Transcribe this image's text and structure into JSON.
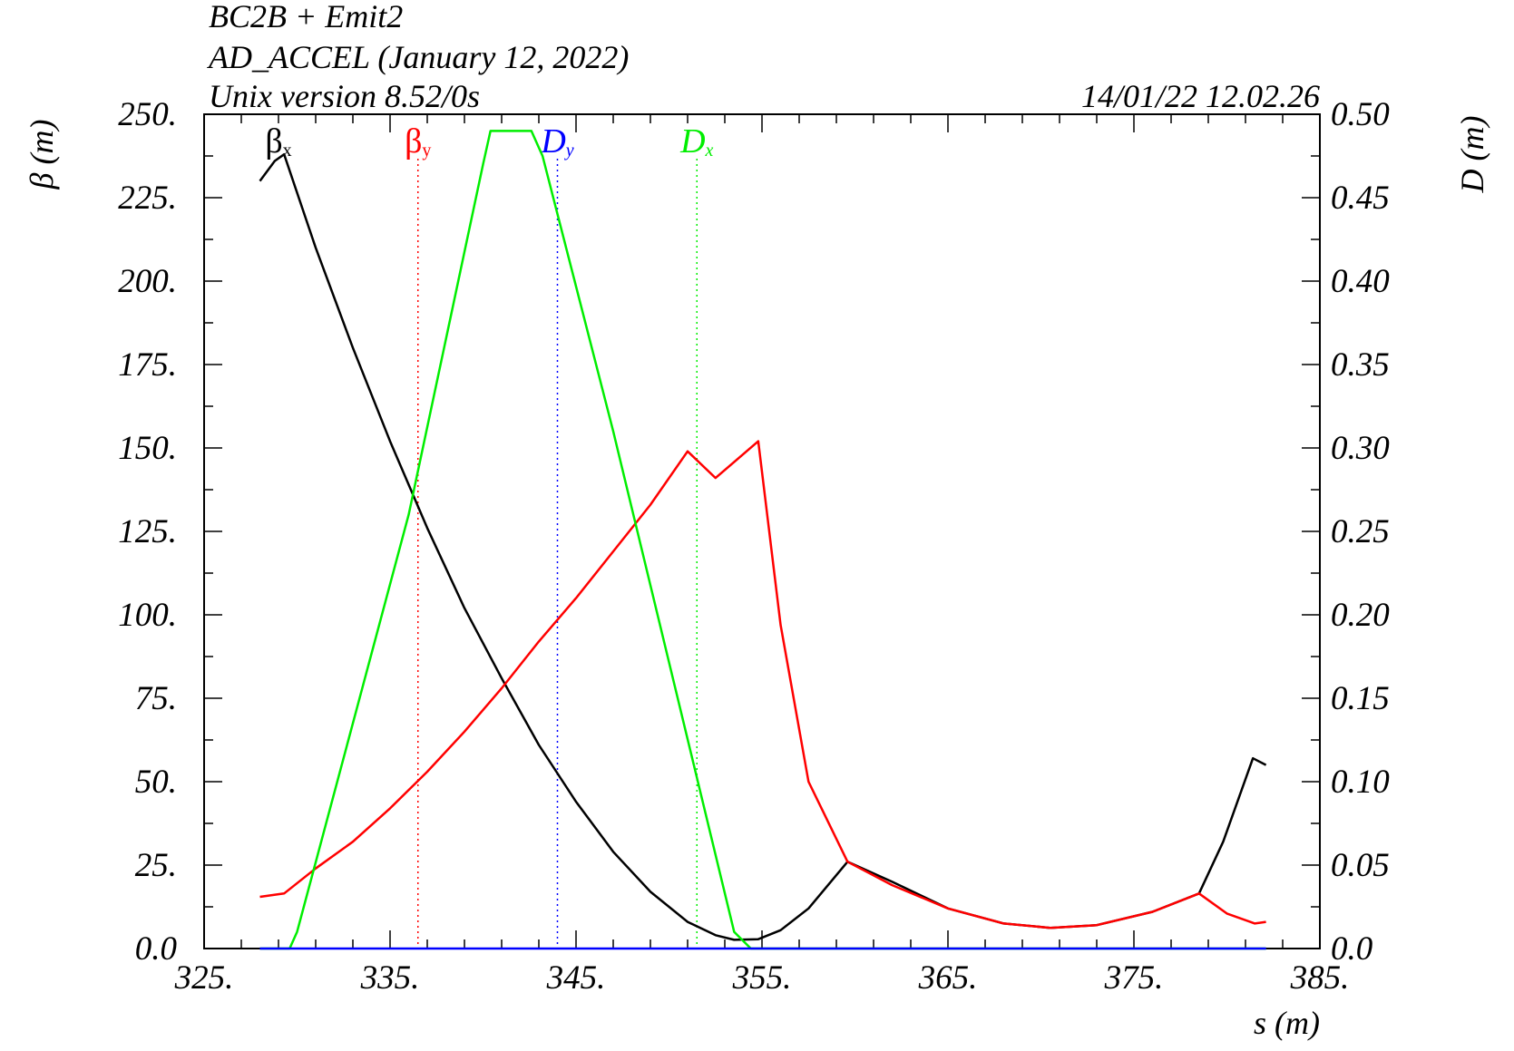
{
  "header": {
    "title_line1": "BC2B + Emit2",
    "title_line2": "AD_ACCEL (January 12, 2022)",
    "title_line3": "Unix version 8.52/0s",
    "timestamp": "14/01/22  12.02.26"
  },
  "chart_data": {
    "type": "line",
    "xlabel": "s (m)",
    "ylabel_left": "β  (m)",
    "ylabel_right": "D  (m)",
    "xlim": [
      325,
      385
    ],
    "ylim_left": [
      0,
      250
    ],
    "ylim_right": [
      0,
      0.5
    ],
    "x_ticks": [
      "325.",
      "335.",
      "345.",
      "355.",
      "365.",
      "375.",
      "385."
    ],
    "y_left_ticks": [
      "0.0",
      "25.",
      "50.",
      "75.",
      "100.",
      "125.",
      "150.",
      "175.",
      "200.",
      "225.",
      "250."
    ],
    "y_right_ticks": [
      "0.0",
      "0.05",
      "0.10",
      "0.15",
      "0.20",
      "0.25",
      "0.30",
      "0.35",
      "0.40",
      "0.45",
      "0.50"
    ],
    "legend_markers": [
      {
        "sym": "β",
        "sub": "x",
        "color": "#000000",
        "x": 329.0
      },
      {
        "sym": "β",
        "sub": "y",
        "color": "#ff0000",
        "x": 336.5
      },
      {
        "sym": "D",
        "sub": "y",
        "color": "#0000ff",
        "x": 344.0
      },
      {
        "sym": "D",
        "sub": "x",
        "color": "#00ee00",
        "x": 351.5
      }
    ],
    "series": [
      {
        "name": "βx",
        "color": "#000000",
        "axis": "left",
        "x": [
          328.0,
          328.8,
          329.3,
          331,
          333,
          335,
          337,
          339,
          341,
          343,
          345,
          347,
          349,
          351,
          352.5,
          353.5,
          354.8,
          356,
          357.5,
          359.6,
          362,
          365,
          368,
          370.5,
          373,
          376,
          378.5,
          379.8,
          381.4,
          382.1
        ],
        "y": [
          230,
          236,
          238,
          210,
          180,
          152,
          126,
          102,
          81,
          61,
          44,
          29,
          17,
          8,
          4,
          2.6,
          2.8,
          5.5,
          12,
          26,
          20,
          12,
          7.5,
          6.2,
          7,
          11,
          16.5,
          32,
          57,
          55
        ]
      },
      {
        "name": "βy",
        "color": "#ff0000",
        "axis": "left",
        "x": [
          328.0,
          329.3,
          331,
          333,
          335,
          337,
          339,
          341,
          343,
          345,
          347,
          349,
          351,
          352.5,
          354.8,
          356,
          357.5,
          359.6,
          362,
          365,
          368,
          370.5,
          373,
          376,
          378.5,
          380,
          381.5,
          382.1
        ],
        "y": [
          15.5,
          16.5,
          24,
          32,
          42,
          53,
          65,
          78,
          92,
          105,
          119,
          133,
          149,
          141,
          152,
          97,
          50,
          26,
          19,
          12,
          7.5,
          6.2,
          7,
          11,
          16.5,
          10.5,
          7.5,
          8
        ]
      },
      {
        "name": "Dx",
        "color": "#00ee00",
        "axis": "right",
        "x": [
          328.0,
          329.6,
          330.0,
          336.0,
          340.0,
          340.4,
          342.6,
          343.2,
          347.0,
          353.5,
          354.4,
          382.1
        ],
        "y": [
          0,
          0,
          0.01,
          0.26,
          0.47,
          0.49,
          0.49,
          0.475,
          0.31,
          0.01,
          0,
          0
        ]
      },
      {
        "name": "Dy",
        "color": "#0000ff",
        "axis": "right",
        "x": [
          328.0,
          382.1
        ],
        "y": [
          0,
          0
        ]
      }
    ]
  }
}
